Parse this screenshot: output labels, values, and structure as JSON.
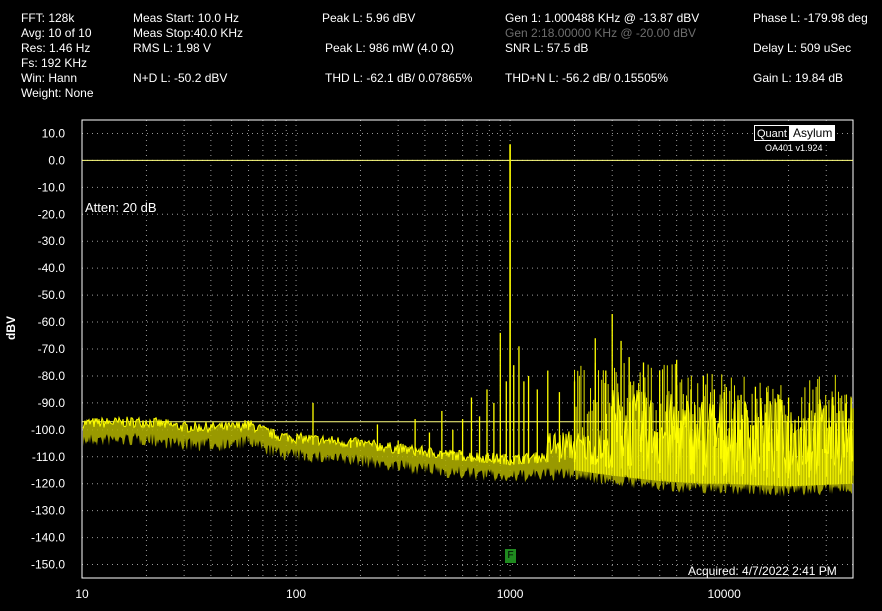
{
  "stats": {
    "fft": "FFT:  128k",
    "avg": "Avg: 10 of 10",
    "res": "Res: 1.46 Hz",
    "fs": "Fs: 192 KHz",
    "win": "Win: Hann",
    "weight": "Weight: None",
    "meas_start": "Meas Start: 10.0 Hz",
    "meas_stop": "Meas Stop:40.0 KHz",
    "rms": "RMS L: 1.98 V",
    "nd": "N+D L: -50.2 dBV",
    "peak_dbv": "Peak L: 5.96 dBV",
    "peak_mw": "Peak L: 986 mW (4.0 Ω)",
    "thd": "THD L: -62.1 dB/ 0.07865%",
    "gen1": "Gen 1: 1.000488 KHz @ -13.87  dBV",
    "gen2": "Gen 2:18.00000 KHz @ -20.00  dBV",
    "snr": "SNR L: 57.5 dB",
    "thdn": "THD+N L: -56.2 dB/ 0.15505%",
    "phase": "Phase L: -179.98 deg",
    "delay": "Delay L: 509 uSec",
    "gain": "Gain L: 19.84 dB"
  },
  "logo": {
    "left": "Quant",
    "right": "Asylum",
    "version": "OA401 v1.924"
  },
  "annotations": {
    "atten": "Atten: 20 dB",
    "acquired": "Acquired: 4/7/2022  2:41 PM",
    "marker": "F"
  },
  "colors": {
    "trace": "#ffff00",
    "trace_dim": "#b4b400",
    "grid": "#9a9a9a",
    "ref_line": "#ffff80"
  },
  "chart_data": {
    "type": "line",
    "title": "",
    "xlabel": "",
    "ylabel": "dBV",
    "x_scale": "log",
    "xlim": [
      10,
      40000
    ],
    "ylim": [
      -155,
      15
    ],
    "x_ticks": [
      10,
      100,
      1000,
      10000
    ],
    "y_ticks": [
      10,
      0,
      -10,
      -20,
      -30,
      -40,
      -50,
      -60,
      -70,
      -80,
      -90,
      -100,
      -110,
      -120,
      -130,
      -140,
      -150
    ],
    "grid": true,
    "reference_lines_dbv": [
      0,
      -97
    ],
    "series": [
      {
        "name": "",
        "noise_floor": [
          [
            10,
            -99.5
          ],
          [
            20,
            -99
          ],
          [
            30,
            -101
          ],
          [
            50,
            -101
          ],
          [
            60,
            -100
          ],
          [
            80,
            -104
          ],
          [
            100,
            -105
          ],
          [
            200,
            -107
          ],
          [
            300,
            -109
          ],
          [
            500,
            -111
          ],
          [
            700,
            -112
          ],
          [
            1000,
            -113
          ],
          [
            1500,
            -112
          ],
          [
            2000,
            -112
          ],
          [
            3000,
            -114
          ],
          [
            5000,
            -116
          ],
          [
            8000,
            -117
          ],
          [
            10000,
            -117
          ],
          [
            20000,
            -118
          ],
          [
            40000,
            -117
          ]
        ],
        "peaks": [
          [
            60,
            -97
          ],
          [
            120,
            -90
          ],
          [
            180,
            -103
          ],
          [
            240,
            -98
          ],
          [
            300,
            -104
          ],
          [
            360,
            -96
          ],
          [
            420,
            -101
          ],
          [
            480,
            -93
          ],
          [
            540,
            -100
          ],
          [
            600,
            -96
          ],
          [
            660,
            -88
          ],
          [
            720,
            -95
          ],
          [
            780,
            -85
          ],
          [
            840,
            -90
          ],
          [
            900,
            -64
          ],
          [
            960,
            -82
          ],
          [
            1000,
            6
          ],
          [
            1040,
            -76
          ],
          [
            1100,
            -69
          ],
          [
            1160,
            -82
          ],
          [
            1220,
            -80
          ],
          [
            1340,
            -85
          ],
          [
            1500,
            -78
          ],
          [
            1700,
            -86
          ],
          [
            2000,
            -82
          ],
          [
            2500,
            -66
          ],
          [
            2800,
            -78
          ],
          [
            3000,
            -57
          ],
          [
            3300,
            -67
          ],
          [
            3600,
            -73
          ],
          [
            4200,
            -75
          ],
          [
            5000,
            -78
          ],
          [
            6000,
            -74
          ],
          [
            7000,
            -85
          ],
          [
            8000,
            -80
          ],
          [
            9000,
            -85
          ],
          [
            10000,
            -86
          ],
          [
            12000,
            -87
          ],
          [
            14000,
            -84
          ],
          [
            16000,
            -86
          ],
          [
            18000,
            -87
          ],
          [
            20000,
            -88
          ],
          [
            25000,
            -90
          ],
          [
            30000,
            -91
          ],
          [
            40000,
            -92
          ]
        ]
      }
    ]
  }
}
